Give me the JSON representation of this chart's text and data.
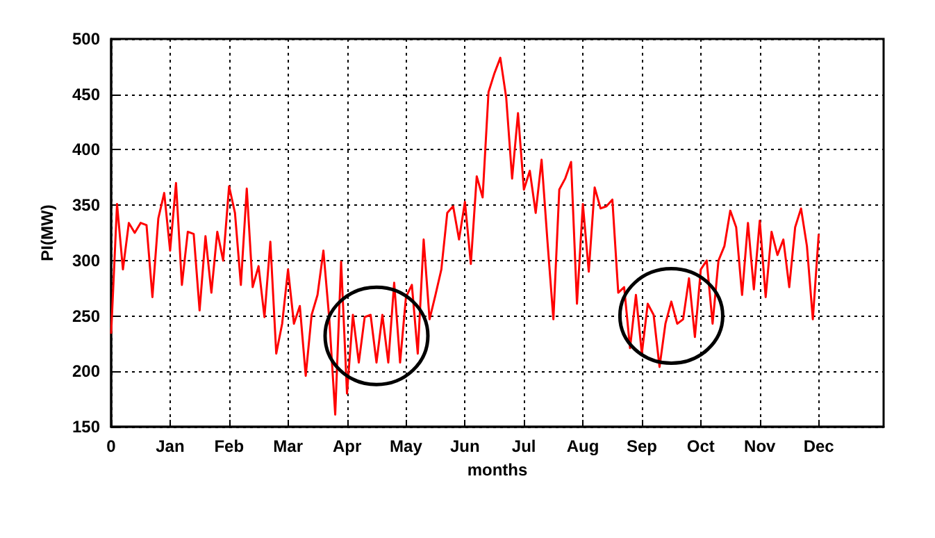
{
  "chart_data": {
    "type": "line",
    "xlabel": "months",
    "ylabel": "PI(MW)",
    "categories": [
      "0",
      null,
      null,
      null,
      null,
      null,
      null,
      null,
      null,
      null,
      "Jan",
      null,
      null,
      null,
      null,
      null,
      null,
      null,
      null,
      null,
      "Feb",
      null,
      null,
      null,
      null,
      null,
      null,
      null,
      null,
      null,
      "Mar",
      null,
      null,
      null,
      null,
      null,
      null,
      null,
      null,
      null,
      "Apr",
      null,
      null,
      null,
      null,
      null,
      null,
      null,
      null,
      null,
      "May",
      null,
      null,
      null,
      null,
      null,
      null,
      null,
      null,
      null,
      "Jun",
      null,
      null,
      null,
      null,
      null,
      null,
      null,
      null,
      null,
      "Jul",
      null,
      null,
      null,
      null,
      null,
      null,
      null,
      null,
      null,
      "Aug",
      null,
      null,
      null,
      null,
      null,
      null,
      null,
      null,
      null,
      "Sep",
      null,
      null,
      null,
      null,
      null,
      null,
      null,
      null,
      null,
      "Oct",
      null,
      null,
      null,
      null,
      null,
      null,
      null,
      null,
      null,
      "Nov",
      null,
      null,
      null,
      null,
      null,
      null,
      null,
      null,
      null,
      "Dec",
      null,
      null,
      null,
      null,
      null,
      null,
      null,
      null,
      null,
      null,
      null
    ],
    "ylim": [
      150,
      500
    ],
    "yticks": [
      150,
      200,
      250,
      300,
      350,
      400,
      450,
      500
    ],
    "grid": true,
    "marker": "none",
    "line_style": "solid",
    "series": [
      {
        "color": "#ff0000",
        "values": [
          234,
          351,
          292,
          334,
          325,
          334,
          332,
          267,
          338,
          361,
          309,
          370,
          278,
          326,
          324,
          255,
          322,
          271,
          326,
          300,
          367,
          343,
          278,
          365,
          276,
          295,
          249,
          317,
          216,
          243,
          292,
          243,
          259,
          196,
          251,
          269,
          309,
          247,
          161,
          299,
          180,
          251,
          208,
          249,
          251,
          208,
          251,
          208,
          280,
          208,
          267,
          278,
          216,
          319,
          247,
          269,
          292,
          343,
          349,
          319,
          353,
          297,
          376,
          357,
          452,
          469,
          483,
          447,
          374,
          433,
          364,
          381,
          343,
          391,
          317,
          247,
          364,
          374,
          389,
          261,
          351,
          290,
          366,
          347,
          349,
          355,
          271,
          276,
          221,
          269,
          216,
          261,
          251,
          204,
          243,
          263,
          243,
          247,
          284,
          231,
          292,
          300,
          243,
          300,
          313,
          345,
          330,
          269,
          334,
          274,
          336,
          267,
          326,
          305,
          319,
          276,
          330,
          347,
          313,
          247,
          324,
          null,
          null,
          null,
          null,
          null,
          null,
          null,
          null,
          null,
          null,
          null
        ]
      }
    ]
  }
}
